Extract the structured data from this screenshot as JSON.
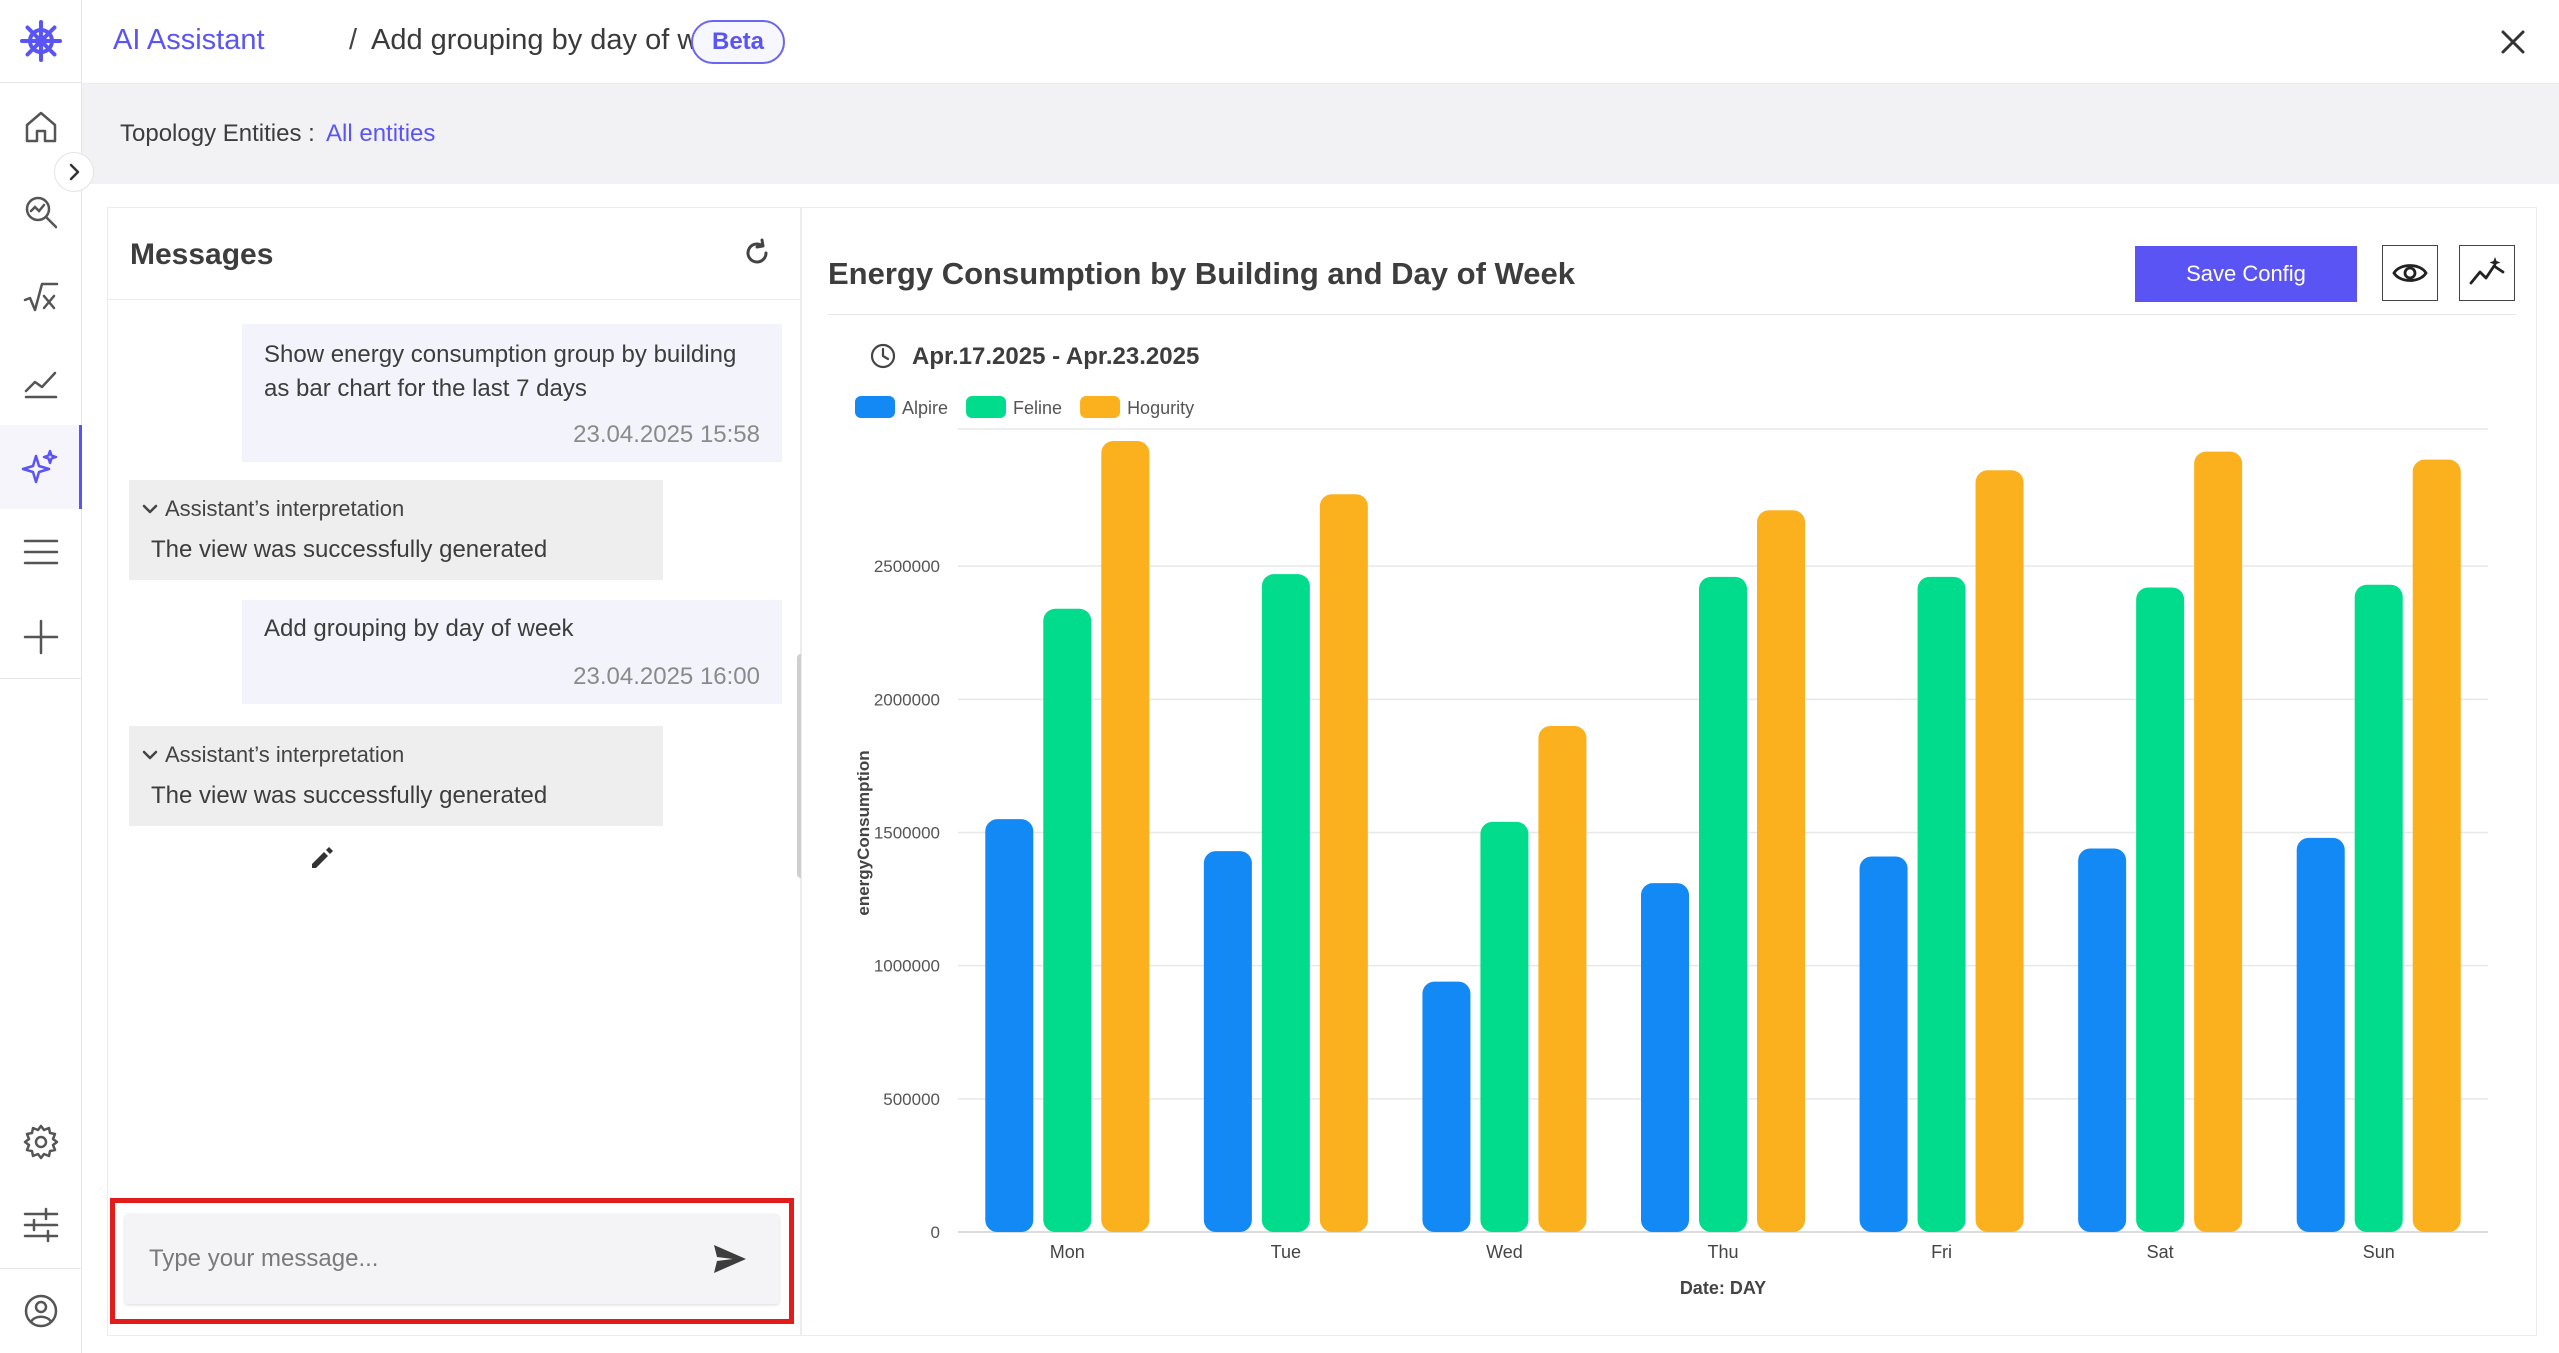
{
  "header": {
    "breadcrumb_root": "AI Assistant",
    "breadcrumb_separator": "/",
    "breadcrumb_current": "Add grouping by day of week",
    "badge": "Beta",
    "close_icon": "close-icon"
  },
  "sidebar": {
    "items": [
      {
        "name": "home",
        "icon": "home-icon"
      },
      {
        "name": "explore",
        "icon": "search-chart-icon"
      },
      {
        "name": "formula",
        "icon": "sqrt-x-icon"
      },
      {
        "name": "trends",
        "icon": "trend-line-icon"
      },
      {
        "name": "ai-assistant",
        "icon": "sparkle-icon",
        "active": true
      },
      {
        "name": "menu",
        "icon": "menu-icon"
      },
      {
        "name": "add",
        "icon": "plus-icon"
      },
      {
        "name": "settings",
        "icon": "gear-icon"
      },
      {
        "name": "adjustments",
        "icon": "sliders-icon"
      },
      {
        "name": "profile",
        "icon": "user-icon"
      }
    ]
  },
  "filter": {
    "label": "Topology Entities :",
    "value": "All entities"
  },
  "messages": {
    "title": "Messages",
    "items": [
      {
        "type": "user",
        "line1": "Show energy consumption group by building",
        "line2": "as bar chart for the last 7 days",
        "time": "23.04.2025 15:58"
      },
      {
        "type": "assistant",
        "heading": "Assistant’s interpretation",
        "text": "The view was successfully generated"
      },
      {
        "type": "user",
        "line1": "Add grouping by day of week",
        "time": "23.04.2025 16:00"
      },
      {
        "type": "assistant",
        "heading": "Assistant’s interpretation",
        "text": "The view was successfully generated"
      }
    ],
    "input_placeholder": "Type your message..."
  },
  "chart_panel": {
    "title": "Energy Consumption by Building and Day of Week",
    "save_label": "Save Config",
    "date_range": "Apr.17.2025 - Apr.23.2025"
  },
  "colors": {
    "accent": "#5b54f5",
    "alpire": "#1289f5",
    "feline": "#00dc8c",
    "hogurity": "#fbb01e"
  },
  "chart_data": {
    "type": "bar",
    "categories": [
      "Mon",
      "Tue",
      "Wed",
      "Thu",
      "Fri",
      "Sat",
      "Sun"
    ],
    "series": [
      {
        "name": "Alpire",
        "values": [
          1550000,
          1430000,
          940000,
          1310000,
          1410000,
          1440000,
          1480000
        ]
      },
      {
        "name": "Feline",
        "values": [
          2340000,
          2470000,
          1540000,
          2460000,
          2460000,
          2420000,
          2430000
        ]
      },
      {
        "name": "Hogurity",
        "values": [
          2970000,
          2770000,
          1900000,
          2710000,
          2860000,
          2930000,
          2900000
        ]
      }
    ],
    "xlabel": "Date: DAY",
    "ylabel": "energyConsumption",
    "ylim": [
      0,
      3000000
    ],
    "yticks": [
      0,
      500000,
      1000000,
      1500000,
      2000000,
      2500000
    ],
    "ytick_labels": [
      "0",
      "500000",
      "1000000",
      "1500000",
      "2000000",
      "2500000"
    ],
    "grid": true,
    "legend_position": "top-left"
  }
}
